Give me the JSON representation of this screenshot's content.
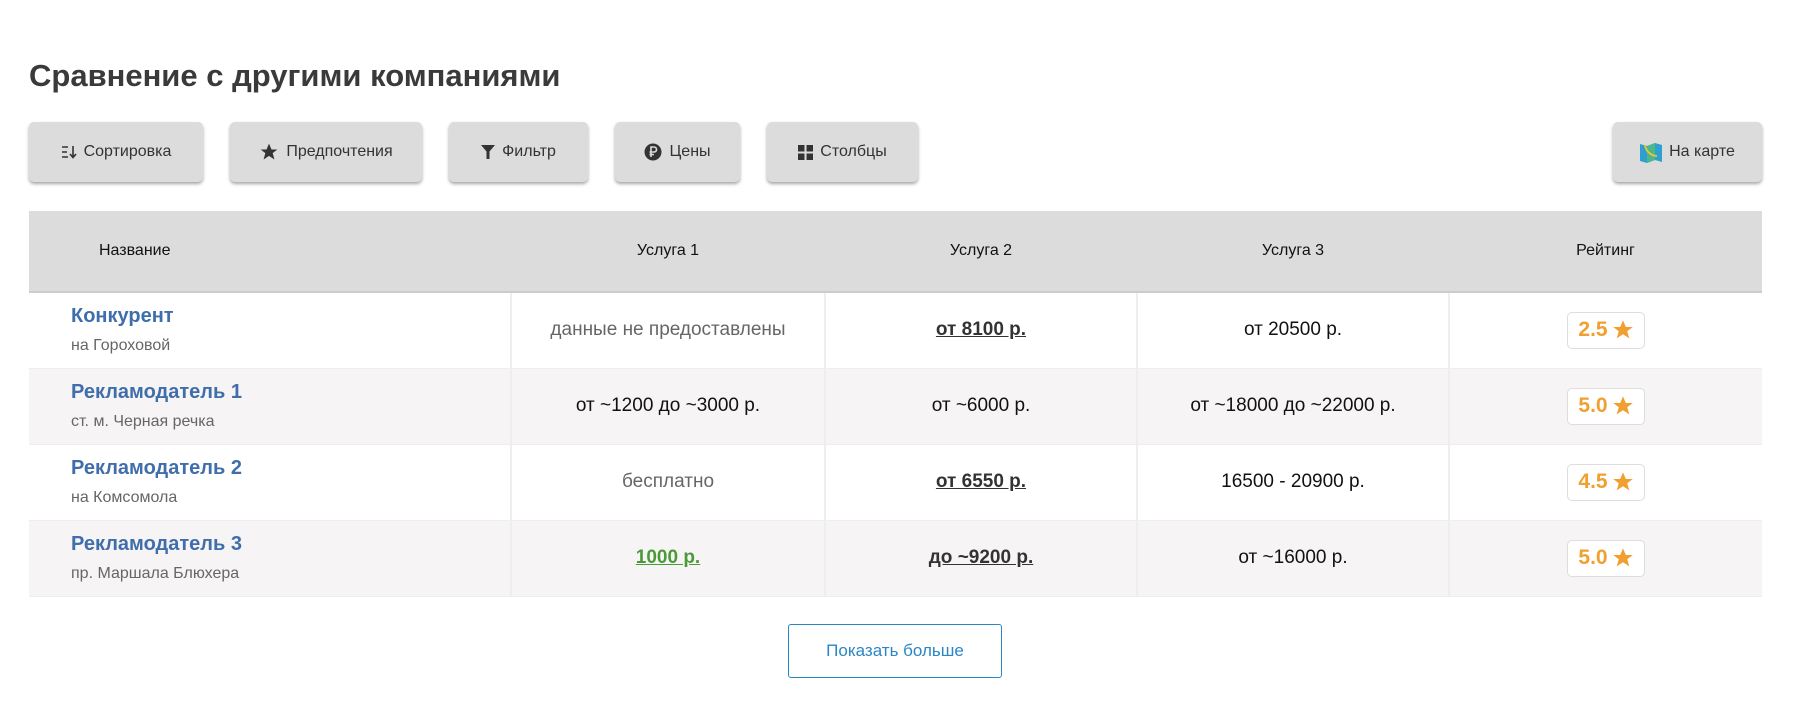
{
  "title": "Сравнение с другими компаниями",
  "toolbar": {
    "sort": "Сортировка",
    "prefs": "Предпочтения",
    "filter": "Фильтр",
    "prices": "Цены",
    "columns": "Столбцы",
    "map": "На карте"
  },
  "table": {
    "headers": [
      "Название",
      "Услуга 1",
      "Услуга 2",
      "Услуга 3",
      "Рейтинг"
    ],
    "rows": [
      {
        "name": "Конкурент",
        "address": "на Гороховой",
        "s1": "данные не предоставлены",
        "s2": "от 8100 р.",
        "s3": "от 20500 р.",
        "rating": "2.5"
      },
      {
        "name": "Рекламодатель 1",
        "address": "ст. м. Черная речка",
        "s1": "от ~1200 до ~3000 р.",
        "s2": "от ~6000 р.",
        "s3": "от ~18000 до ~22000 р.",
        "rating": "5.0"
      },
      {
        "name": "Рекламодатель 2",
        "address": "на Комсомола",
        "s1": "бесплатно",
        "s2": "от 6550 р.",
        "s3": "16500 - 20900 р.",
        "rating": "4.5"
      },
      {
        "name": "Рекламодатель 3",
        "address": "пр. Маршала Блюхера",
        "s1": "1000 р.",
        "s2": "до ~9200 р.",
        "s3": "от ~16000 р.",
        "rating": "5.0"
      }
    ]
  },
  "show_more": "Показать больше",
  "colors": {
    "link": "#3f6eab",
    "rating": "#f0a030",
    "green": "#4a9a3a",
    "accent": "#2b86c5"
  }
}
